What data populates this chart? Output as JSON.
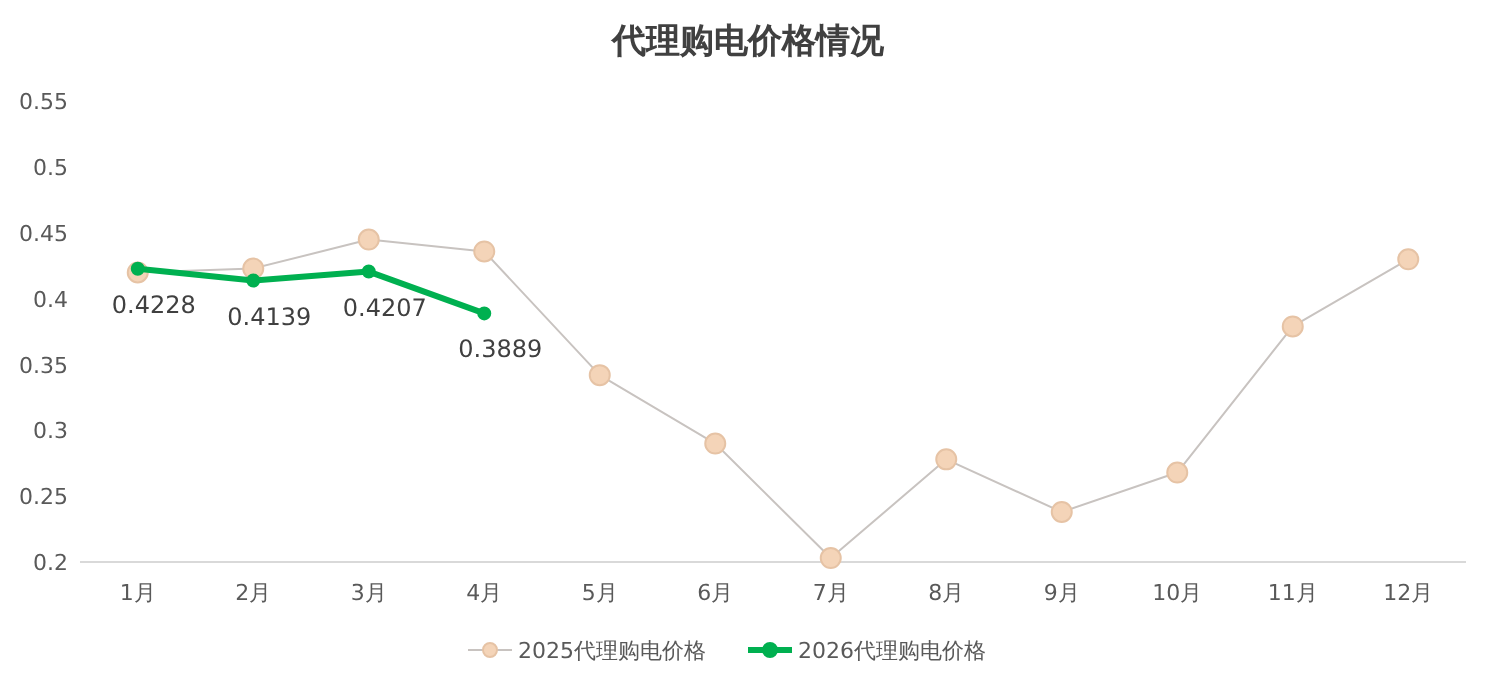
{
  "chart_data": {
    "type": "line",
    "title": "代理购电价格情况",
    "categories": [
      "1月",
      "2月",
      "3月",
      "4月",
      "5月",
      "6月",
      "7月",
      "8月",
      "9月",
      "10月",
      "11月",
      "12月"
    ],
    "ylim": [
      0.2,
      0.55
    ],
    "yticks": [
      0.2,
      0.25,
      0.3,
      0.35,
      0.4,
      0.45,
      0.5,
      0.55
    ],
    "grid": false,
    "legend": "bottom",
    "marker": "circle",
    "series": [
      {
        "name": "2025代理购电价格",
        "color": "#c8c3c0",
        "values": [
          0.42,
          0.423,
          0.445,
          0.436,
          0.342,
          0.29,
          0.203,
          0.278,
          0.238,
          0.268,
          0.379,
          0.43
        ]
      },
      {
        "name": "2026代理购电价格",
        "color": "#00b050",
        "values": [
          0.4228,
          0.4139,
          0.4207,
          0.3889,
          null,
          null,
          null,
          null,
          null,
          null,
          null,
          null
        ],
        "value_labels": [
          "0.4228",
          "0.4139",
          "0.4207",
          "0.3889",
          null,
          null,
          null,
          null,
          null,
          null,
          null,
          null
        ]
      }
    ]
  }
}
